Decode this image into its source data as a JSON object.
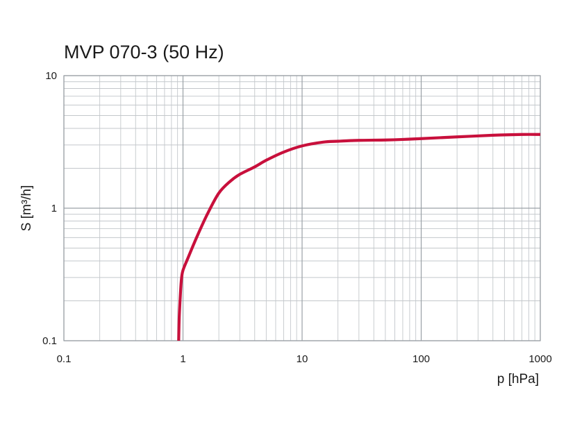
{
  "chart_data": {
    "type": "line",
    "title": "MVP 070-3 (50 Hz)",
    "xlabel": "p  [hPa]",
    "ylabel": "S  [m³/h]",
    "xscale": "log",
    "yscale": "log",
    "xlim": [
      0.1,
      1000
    ],
    "ylim": [
      0.1,
      10
    ],
    "x_ticks": [
      {
        "value": 0.1,
        "label": "0.1"
      },
      {
        "value": 1,
        "label": "1"
      },
      {
        "value": 10,
        "label": "10"
      },
      {
        "value": 100,
        "label": "100"
      },
      {
        "value": 1000,
        "label": "1000"
      }
    ],
    "y_ticks": [
      {
        "value": 0.1,
        "label": "0.1"
      },
      {
        "value": 1,
        "label": "1"
      },
      {
        "value": 10,
        "label": "10"
      }
    ],
    "grid": true,
    "series": [
      {
        "color": "#c8103c",
        "x": [
          0.92,
          0.93,
          0.95,
          0.97,
          1.0,
          1.1,
          1.3,
          1.6,
          2.0,
          2.5,
          3.0,
          4.0,
          5.0,
          7.0,
          10,
          15,
          20,
          30,
          50,
          70,
          100,
          200,
          400,
          700,
          1000
        ],
        "y": [
          0.1,
          0.15,
          0.22,
          0.29,
          0.34,
          0.42,
          0.6,
          0.9,
          1.3,
          1.6,
          1.8,
          2.05,
          2.3,
          2.65,
          2.95,
          3.15,
          3.2,
          3.25,
          3.27,
          3.3,
          3.35,
          3.45,
          3.55,
          3.6,
          3.6
        ]
      }
    ]
  }
}
